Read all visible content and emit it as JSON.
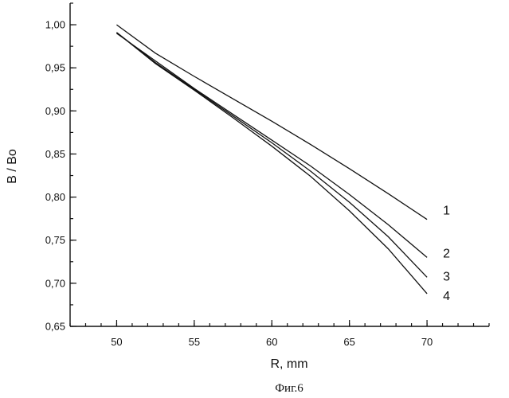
{
  "chart_data": {
    "type": "line",
    "xlabel": "R, mm",
    "ylabel": "B / Bo",
    "xlim": [
      47,
      74
    ],
    "ylim": [
      0.65,
      1.025
    ],
    "x_ticks": [
      50,
      55,
      60,
      65,
      70
    ],
    "x_tick_labels": [
      "50",
      "55",
      "60",
      "65",
      "70"
    ],
    "y_ticks": [
      0.65,
      0.7,
      0.75,
      0.8,
      0.85,
      0.9,
      0.95,
      1.0
    ],
    "y_tick_labels": [
      "0,65",
      "0,70",
      "0,75",
      "0,80",
      "0,85",
      "0,90",
      "0,95",
      "1,00"
    ],
    "x_minor_step": 1,
    "y_minor_step": 0.025,
    "grid": false,
    "caption": "Фиг.6",
    "series": [
      {
        "label": "1",
        "x": [
          50,
          52.5,
          55,
          57.5,
          60,
          62.5,
          65,
          67.5,
          70
        ],
        "y": [
          1.0,
          0.967,
          0.94,
          0.914,
          0.888,
          0.861,
          0.833,
          0.804,
          0.774
        ]
      },
      {
        "label": "2",
        "x": [
          50,
          52.5,
          55,
          57.5,
          60,
          62.5,
          65,
          67.5,
          70
        ],
        "y": [
          0.99,
          0.958,
          0.926,
          0.896,
          0.866,
          0.836,
          0.803,
          0.768,
          0.73
        ]
      },
      {
        "label": "3",
        "x": [
          50,
          52.5,
          55,
          57.5,
          60,
          62.5,
          65,
          67.5,
          70
        ],
        "y": [
          0.991,
          0.956,
          0.925,
          0.894,
          0.863,
          0.83,
          0.794,
          0.754,
          0.707
        ]
      },
      {
        "label": "4",
        "x": [
          50,
          52.5,
          55,
          57.5,
          60,
          62.5,
          65,
          67.5,
          70
        ],
        "y": [
          0.991,
          0.955,
          0.924,
          0.892,
          0.859,
          0.824,
          0.784,
          0.74,
          0.688
        ]
      }
    ]
  }
}
